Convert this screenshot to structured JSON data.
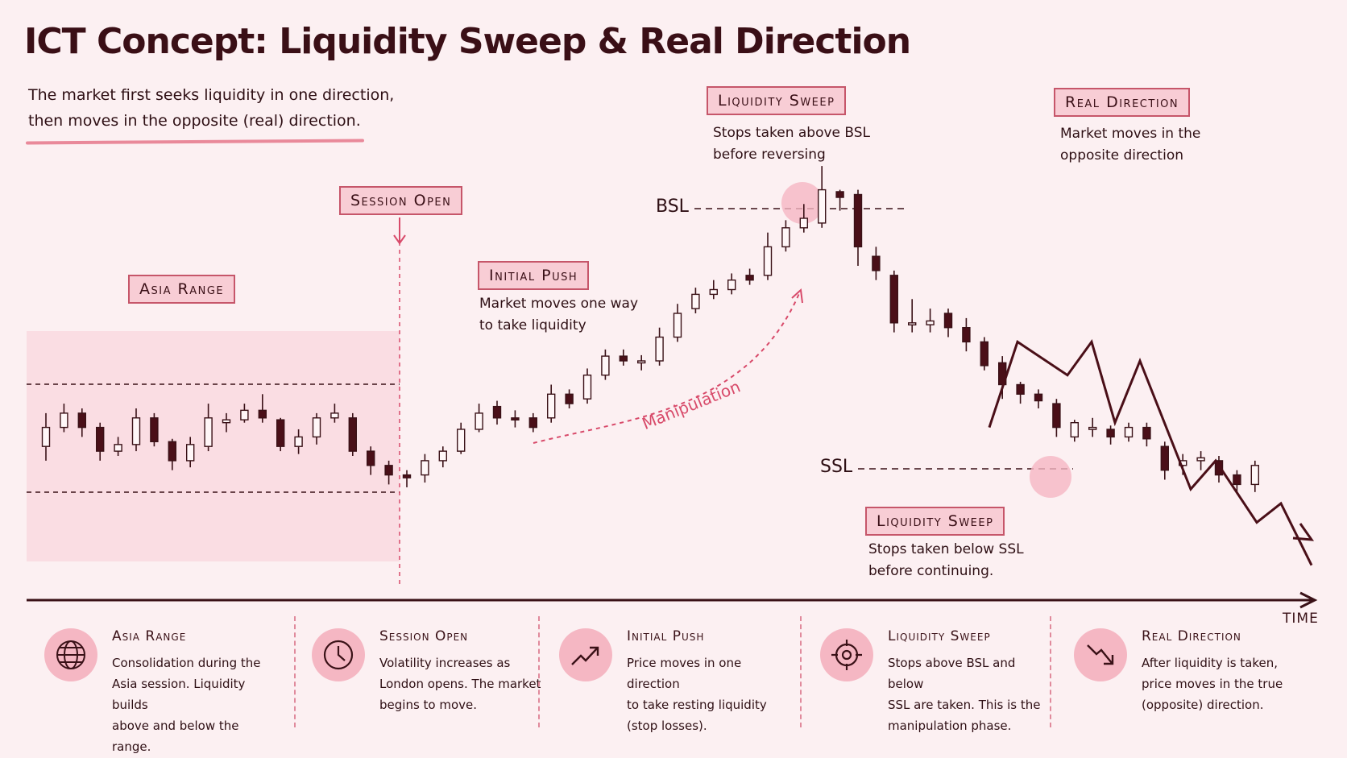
{
  "title": "ICT Concept: Liquidity Sweep & Real Direction",
  "subtitle_line1": "The market first seeks liquidity in one direction,",
  "subtitle_line2": "then moves in the opposite (real) direction.",
  "tags": {
    "asia_range": "Asia Range",
    "session_open": "Session Open",
    "initial_push": "Initial Push",
    "liquidity_sweep_top": "Liquidity Sweep",
    "real_direction": "Real Direction",
    "liquidity_sweep_bottom": "Liquidity Sweep"
  },
  "notes": {
    "initial_push_1": "Market moves one way",
    "initial_push_2": "to take liquidity",
    "sweep_top_1": "Stops taken above BSL",
    "sweep_top_2": "before reversing",
    "real_dir_1": "Market moves in the",
    "real_dir_2": "opposite direction",
    "sweep_bottom_1": "Stops taken below SSL",
    "sweep_bottom_2": "before continuing."
  },
  "levels": {
    "bsl": "BSL",
    "ssl": "SSL"
  },
  "manipulation_label": "Manipulation",
  "axis_label": "TIME",
  "colors": {
    "background": "#fcf0f2",
    "accent": "#d84a6a",
    "tag_fill": "#f8cdd5",
    "bear_candle": "#4a0f18",
    "range_fill": "#fadde3"
  },
  "legend": [
    {
      "icon": "globe-icon",
      "title": "Asia Range",
      "lines": [
        "Consolidation during the",
        "Asia session. Liquidity builds",
        "above and below the range."
      ]
    },
    {
      "icon": "clock-icon",
      "title": "Session Open",
      "lines": [
        "Volatility increases as",
        "London opens. The market",
        "begins to move."
      ]
    },
    {
      "icon": "trend-up-icon",
      "title": "Initial Push",
      "lines": [
        "Price moves in one direction",
        "to take resting liquidity",
        "(stop losses)."
      ]
    },
    {
      "icon": "target-icon",
      "title": "Liquidity Sweep",
      "lines": [
        "Stops above BSL and below",
        "SSL are taken. This is the",
        "manipulation phase."
      ]
    },
    {
      "icon": "trend-down-icon",
      "title": "Real Direction",
      "lines": [
        "After liquidity is taken,",
        "price moves in the true",
        "(opposite) direction."
      ]
    }
  ],
  "chart_data": {
    "type": "candlestick",
    "candles": [
      {
        "o": 0.1,
        "c": 0.3,
        "h": 0.45,
        "l": -0.05
      },
      {
        "o": 0.3,
        "c": 0.45,
        "h": 0.55,
        "l": 0.25
      },
      {
        "o": 0.45,
        "c": 0.3,
        "h": 0.5,
        "l": 0.2
      },
      {
        "o": 0.3,
        "c": 0.05,
        "h": 0.35,
        "l": -0.05
      },
      {
        "o": 0.05,
        "c": 0.12,
        "h": 0.2,
        "l": 0.0
      },
      {
        "o": 0.12,
        "c": 0.4,
        "h": 0.5,
        "l": 0.05
      },
      {
        "o": 0.4,
        "c": 0.15,
        "h": 0.45,
        "l": 0.1
      },
      {
        "o": 0.15,
        "c": -0.05,
        "h": 0.18,
        "l": -0.15
      },
      {
        "o": -0.05,
        "c": 0.12,
        "h": 0.2,
        "l": -0.12
      },
      {
        "o": 0.1,
        "c": 0.4,
        "h": 0.55,
        "l": 0.05
      },
      {
        "o": 0.35,
        "c": 0.38,
        "h": 0.45,
        "l": 0.25
      },
      {
        "o": 0.38,
        "c": 0.48,
        "h": 0.55,
        "l": 0.35
      },
      {
        "o": 0.48,
        "c": 0.4,
        "h": 0.65,
        "l": 0.35
      },
      {
        "o": 0.38,
        "c": 0.1,
        "h": 0.4,
        "l": 0.05
      },
      {
        "o": 0.1,
        "c": 0.2,
        "h": 0.28,
        "l": 0.02
      },
      {
        "o": 0.2,
        "c": 0.4,
        "h": 0.45,
        "l": 0.12
      },
      {
        "o": 0.4,
        "c": 0.45,
        "h": 0.55,
        "l": 0.35
      },
      {
        "o": 0.4,
        "c": 0.05,
        "h": 0.45,
        "l": 0.0
      },
      {
        "o": 0.05,
        "c": -0.1,
        "h": 0.1,
        "l": -0.2
      },
      {
        "o": -0.1,
        "c": -0.2,
        "h": -0.05,
        "l": -0.3
      },
      {
        "o": -0.2,
        "c": -0.23,
        "h": -0.15,
        "l": -0.33
      },
      {
        "o": -0.2,
        "c": -0.05,
        "h": 0.02,
        "l": -0.28
      },
      {
        "o": -0.05,
        "c": 0.05,
        "h": 0.1,
        "l": -0.12
      },
      {
        "o": 0.05,
        "c": 0.28,
        "h": 0.35,
        "l": 0.02
      },
      {
        "o": 0.28,
        "c": 0.45,
        "h": 0.55,
        "l": 0.25
      },
      {
        "o": 0.52,
        "c": 0.4,
        "h": 0.58,
        "l": 0.33
      },
      {
        "o": 0.4,
        "c": 0.38,
        "h": 0.48,
        "l": 0.3
      },
      {
        "o": 0.4,
        "c": 0.3,
        "h": 0.45,
        "l": 0.25
      },
      {
        "o": 0.4,
        "c": 0.65,
        "h": 0.75,
        "l": 0.35
      },
      {
        "o": 0.65,
        "c": 0.55,
        "h": 0.7,
        "l": 0.5
      },
      {
        "o": 0.6,
        "c": 0.85,
        "h": 0.92,
        "l": 0.55
      },
      {
        "o": 0.85,
        "c": 1.05,
        "h": 1.12,
        "l": 0.8
      },
      {
        "o": 1.05,
        "c": 1.0,
        "h": 1.12,
        "l": 0.95
      },
      {
        "o": 1.0,
        "c": 1.0,
        "h": 1.06,
        "l": 0.9
      },
      {
        "o": 1.0,
        "c": 1.25,
        "h": 1.35,
        "l": 0.95
      },
      {
        "o": 1.25,
        "c": 1.5,
        "h": 1.6,
        "l": 1.2
      },
      {
        "o": 1.55,
        "c": 1.7,
        "h": 1.77,
        "l": 1.5
      },
      {
        "o": 1.7,
        "c": 1.75,
        "h": 1.85,
        "l": 1.65
      },
      {
        "o": 1.75,
        "c": 1.85,
        "h": 1.92,
        "l": 1.7
      },
      {
        "o": 1.9,
        "c": 1.85,
        "h": 1.97,
        "l": 1.8
      },
      {
        "o": 1.9,
        "c": 2.2,
        "h": 2.35,
        "l": 1.85
      },
      {
        "o": 2.2,
        "c": 2.4,
        "h": 2.48,
        "l": 2.15
      },
      {
        "o": 2.4,
        "c": 2.5,
        "h": 2.65,
        "l": 2.35
      },
      {
        "o": 2.45,
        "c": 2.8,
        "h": 3.05,
        "l": 2.4
      },
      {
        "o": 2.78,
        "c": 2.72,
        "h": 2.8,
        "l": 2.58
      },
      {
        "o": 2.75,
        "c": 2.2,
        "h": 2.8,
        "l": 2.0
      },
      {
        "o": 2.1,
        "c": 1.95,
        "h": 2.2,
        "l": 1.85
      },
      {
        "o": 1.9,
        "c": 1.4,
        "h": 1.95,
        "l": 1.3
      },
      {
        "o": 1.4,
        "c": 1.4,
        "h": 1.65,
        "l": 1.3
      },
      {
        "o": 1.38,
        "c": 1.42,
        "h": 1.55,
        "l": 1.3
      },
      {
        "o": 1.5,
        "c": 1.35,
        "h": 1.55,
        "l": 1.25
      },
      {
        "o": 1.35,
        "c": 1.2,
        "h": 1.45,
        "l": 1.1
      },
      {
        "o": 1.2,
        "c": 0.95,
        "h": 1.25,
        "l": 0.9
      },
      {
        "o": 0.98,
        "c": 0.75,
        "h": 1.05,
        "l": 0.6
      },
      {
        "o": 0.75,
        "c": 0.65,
        "h": 0.78,
        "l": 0.55
      },
      {
        "o": 0.65,
        "c": 0.58,
        "h": 0.7,
        "l": 0.5
      },
      {
        "o": 0.55,
        "c": 0.3,
        "h": 0.6,
        "l": 0.2
      },
      {
        "o": 0.2,
        "c": 0.35,
        "h": 0.38,
        "l": 0.15
      },
      {
        "o": 0.3,
        "c": 0.3,
        "h": 0.4,
        "l": 0.2
      },
      {
        "o": 0.28,
        "c": 0.2,
        "h": 0.32,
        "l": 0.12
      },
      {
        "o": 0.2,
        "c": 0.3,
        "h": 0.35,
        "l": 0.15
      },
      {
        "o": 0.3,
        "c": 0.18,
        "h": 0.35,
        "l": 0.1
      },
      {
        "o": 0.1,
        "c": -0.15,
        "h": 0.15,
        "l": -0.25
      },
      {
        "o": -0.1,
        "c": -0.05,
        "h": 0.02,
        "l": -0.2
      },
      {
        "o": -0.05,
        "c": -0.02,
        "h": 0.05,
        "l": -0.15
      },
      {
        "o": -0.05,
        "c": -0.2,
        "h": 0.0,
        "l": -0.28
      },
      {
        "o": -0.2,
        "c": -0.3,
        "h": -0.15,
        "l": -0.4
      },
      {
        "o": -0.3,
        "c": -0.1,
        "h": -0.05,
        "l": -0.38
      }
    ],
    "bsl": 2.72,
    "ssl": 0.3,
    "asia_range": [
      -0.23,
      0.8
    ],
    "real_direction_path": [
      0.3,
      1.2,
      0.85,
      1.2,
      0.35,
      1.0,
      -0.35,
      -0.05,
      -0.7,
      -0.5,
      -1.15
    ]
  }
}
